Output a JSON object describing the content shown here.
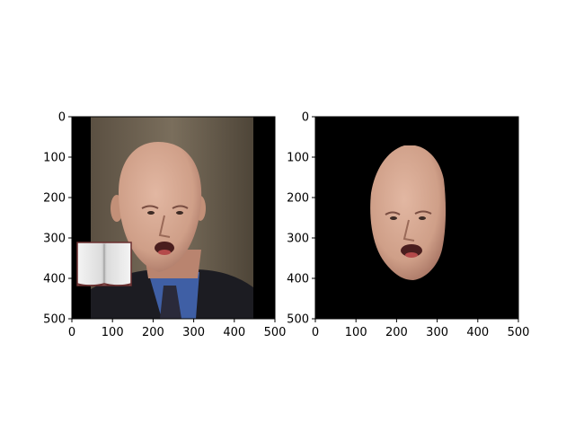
{
  "chart_data": [
    {
      "type": "image",
      "panel": "left",
      "content": "photo",
      "xlim": [
        0,
        500
      ],
      "ylim": [
        500,
        0
      ],
      "xticks": [
        0,
        100,
        200,
        300,
        400,
        500
      ],
      "yticks": [
        0,
        100,
        200,
        300,
        400,
        500
      ],
      "xtick_labels": [
        "0",
        "100",
        "200",
        "300",
        "400",
        "500"
      ],
      "ytick_labels": [
        "0",
        "100",
        "200",
        "300",
        "400",
        "500"
      ],
      "grid": false,
      "overlay_icon": "book-icon"
    },
    {
      "type": "image",
      "panel": "right",
      "content": "face-mask-on-black",
      "xlim": [
        0,
        500
      ],
      "ylim": [
        500,
        0
      ],
      "xticks": [
        0,
        100,
        200,
        300,
        400,
        500
      ],
      "yticks": [
        0,
        100,
        200,
        300,
        400,
        500
      ],
      "xtick_labels": [
        "0",
        "100",
        "200",
        "300",
        "400",
        "500"
      ],
      "ytick_labels": [
        "0",
        "100",
        "200",
        "300",
        "400",
        "500"
      ],
      "grid": false
    }
  ],
  "colors": {
    "axis": "#000000",
    "mask_background": "#000000",
    "backdrop": "#6e6250",
    "skin": "#cf9f88",
    "skin_shadow": "#a87564",
    "jacket": "#1c1c22",
    "shirt": "#3f5fa5",
    "tie": "#2a2a3a"
  }
}
